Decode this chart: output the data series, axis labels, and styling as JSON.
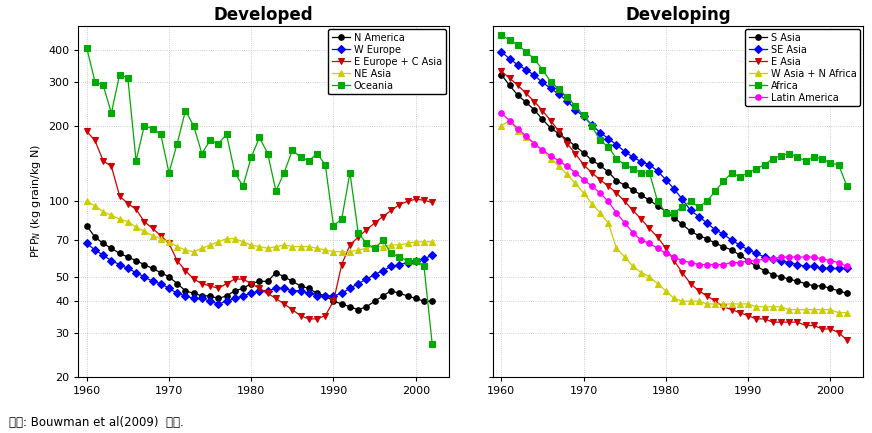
{
  "developed": {
    "title": "Developed",
    "series": {
      "N America": {
        "color": "#000000",
        "marker": "o",
        "markerface": "#000000",
        "data": {
          "1960": 80,
          "1961": 72,
          "1962": 68,
          "1963": 65,
          "1964": 62,
          "1965": 60,
          "1966": 58,
          "1967": 56,
          "1968": 54,
          "1969": 52,
          "1970": 50,
          "1971": 47,
          "1972": 44,
          "1973": 43,
          "1974": 42,
          "1975": 42,
          "1976": 41,
          "1977": 42,
          "1978": 44,
          "1979": 45,
          "1980": 47,
          "1981": 48,
          "1982": 48,
          "1983": 52,
          "1984": 50,
          "1985": 48,
          "1986": 46,
          "1987": 45,
          "1988": 43,
          "1989": 42,
          "1990": 40,
          "1991": 39,
          "1992": 38,
          "1993": 37,
          "1994": 38,
          "1995": 40,
          "1996": 42,
          "1997": 44,
          "1998": 43,
          "1999": 42,
          "2000": 41,
          "2001": 40,
          "2002": 40
        }
      },
      "W Europe": {
        "color": "#0000FF",
        "marker": "D",
        "markerface": "#0000FF",
        "data": {
          "1960": 68,
          "1961": 64,
          "1962": 61,
          "1963": 58,
          "1964": 56,
          "1965": 54,
          "1966": 52,
          "1967": 50,
          "1968": 48,
          "1969": 47,
          "1970": 45,
          "1971": 43,
          "1972": 42,
          "1973": 41,
          "1974": 41,
          "1975": 40,
          "1976": 39,
          "1977": 40,
          "1978": 41,
          "1979": 42,
          "1980": 43,
          "1981": 44,
          "1982": 44,
          "1983": 45,
          "1984": 45,
          "1985": 44,
          "1986": 44,
          "1987": 43,
          "1988": 42,
          "1989": 42,
          "1990": 42,
          "1991": 43,
          "1992": 45,
          "1993": 47,
          "1994": 49,
          "1995": 51,
          "1996": 53,
          "1997": 55,
          "1998": 56,
          "1999": 57,
          "2000": 58,
          "2001": 59,
          "2002": 61
        }
      },
      "E Europe + C Asia": {
        "color": "#CC0000",
        "marker": "v",
        "markerface": "#CC0000",
        "data": {
          "1960": 190,
          "1961": 175,
          "1962": 145,
          "1963": 138,
          "1964": 105,
          "1965": 98,
          "1966": 93,
          "1967": 83,
          "1968": 78,
          "1969": 73,
          "1970": 68,
          "1971": 58,
          "1972": 53,
          "1973": 49,
          "1974": 47,
          "1975": 46,
          "1976": 45,
          "1977": 47,
          "1978": 49,
          "1979": 49,
          "1980": 47,
          "1981": 45,
          "1982": 43,
          "1983": 41,
          "1984": 39,
          "1985": 37,
          "1986": 35,
          "1987": 34,
          "1988": 34,
          "1989": 35,
          "1990": 40,
          "1991": 56,
          "1992": 67,
          "1993": 72,
          "1994": 77,
          "1995": 82,
          "1996": 87,
          "1997": 92,
          "1998": 97,
          "1999": 100,
          "2000": 102,
          "2001": 101,
          "2002": 99
        }
      },
      "NE Asia": {
        "color": "#CCCC00",
        "marker": "^",
        "markerface": "#CCCC00",
        "data": {
          "1960": 100,
          "1961": 96,
          "1962": 91,
          "1963": 88,
          "1964": 85,
          "1965": 83,
          "1966": 79,
          "1967": 76,
          "1968": 73,
          "1969": 71,
          "1970": 69,
          "1971": 66,
          "1972": 64,
          "1973": 63,
          "1974": 65,
          "1975": 67,
          "1976": 69,
          "1977": 71,
          "1978": 71,
          "1979": 69,
          "1980": 67,
          "1981": 66,
          "1982": 65,
          "1983": 66,
          "1984": 67,
          "1985": 66,
          "1986": 66,
          "1987": 66,
          "1988": 65,
          "1989": 64,
          "1990": 63,
          "1991": 63,
          "1992": 63,
          "1993": 64,
          "1994": 65,
          "1995": 66,
          "1996": 66,
          "1997": 67,
          "1998": 67,
          "1999": 68,
          "2000": 69,
          "2001": 69,
          "2002": 69
        }
      },
      "Oceania": {
        "color": "#00AA00",
        "marker": "s",
        "markerface": "#00AA00",
        "data": {
          "1960": 410,
          "1961": 300,
          "1962": 290,
          "1963": 225,
          "1964": 320,
          "1965": 310,
          "1966": 145,
          "1967": 200,
          "1968": 195,
          "1969": 185,
          "1970": 130,
          "1971": 170,
          "1972": 230,
          "1973": 200,
          "1974": 155,
          "1975": 175,
          "1976": 170,
          "1977": 185,
          "1978": 130,
          "1979": 115,
          "1980": 150,
          "1981": 180,
          "1982": 155,
          "1983": 110,
          "1984": 130,
          "1985": 160,
          "1986": 150,
          "1987": 145,
          "1988": 155,
          "1989": 140,
          "1990": 80,
          "1991": 85,
          "1992": 130,
          "1993": 75,
          "1994": 68,
          "1995": 65,
          "1996": 70,
          "1997": 62,
          "1998": 60,
          "1999": 58,
          "2000": 58,
          "2001": 55,
          "2002": 27
        }
      }
    }
  },
  "developing": {
    "title": "Developing",
    "series": {
      "S Asia": {
        "color": "#000000",
        "marker": "o",
        "markerface": "#000000",
        "data": {
          "1960": 320,
          "1961": 290,
          "1962": 265,
          "1963": 248,
          "1964": 232,
          "1965": 212,
          "1966": 196,
          "1967": 186,
          "1968": 176,
          "1969": 166,
          "1970": 156,
          "1971": 146,
          "1972": 139,
          "1973": 131,
          "1974": 121,
          "1975": 116,
          "1976": 111,
          "1977": 106,
          "1978": 101,
          "1979": 96,
          "1980": 91,
          "1981": 86,
          "1982": 81,
          "1983": 76,
          "1984": 73,
          "1985": 71,
          "1986": 68,
          "1987": 66,
          "1988": 64,
          "1989": 61,
          "1990": 58,
          "1991": 55,
          "1992": 53,
          "1993": 51,
          "1994": 50,
          "1995": 49,
          "1996": 48,
          "1997": 47,
          "1998": 46,
          "1999": 46,
          "2000": 45,
          "2001": 44,
          "2002": 43
        }
      },
      "SE Asia": {
        "color": "#0000FF",
        "marker": "D",
        "markerface": "#0000FF",
        "data": {
          "1960": 395,
          "1961": 370,
          "1962": 350,
          "1963": 335,
          "1964": 318,
          "1965": 298,
          "1966": 282,
          "1967": 267,
          "1968": 252,
          "1969": 232,
          "1970": 218,
          "1971": 202,
          "1972": 188,
          "1973": 178,
          "1974": 168,
          "1975": 158,
          "1976": 150,
          "1977": 144,
          "1978": 140,
          "1979": 132,
          "1980": 122,
          "1981": 112,
          "1982": 102,
          "1983": 92,
          "1984": 87,
          "1985": 82,
          "1986": 77,
          "1987": 74,
          "1988": 70,
          "1989": 67,
          "1990": 64,
          "1991": 62,
          "1992": 60,
          "1993": 59,
          "1994": 58,
          "1995": 57,
          "1996": 56,
          "1997": 55,
          "1998": 55,
          "1999": 54,
          "2000": 54,
          "2001": 54,
          "2002": 54
        }
      },
      "E Asia": {
        "color": "#CC0000",
        "marker": "v",
        "markerface": "#CC0000",
        "data": {
          "1960": 330,
          "1961": 310,
          "1962": 290,
          "1963": 270,
          "1964": 250,
          "1965": 230,
          "1966": 210,
          "1967": 190,
          "1968": 170,
          "1969": 155,
          "1970": 140,
          "1971": 130,
          "1972": 122,
          "1973": 115,
          "1974": 108,
          "1975": 100,
          "1976": 92,
          "1977": 85,
          "1978": 78,
          "1979": 72,
          "1980": 65,
          "1981": 58,
          "1982": 52,
          "1983": 47,
          "1984": 44,
          "1985": 42,
          "1986": 40,
          "1987": 38,
          "1988": 37,
          "1989": 36,
          "1990": 35,
          "1991": 34,
          "1992": 34,
          "1993": 33,
          "1994": 33,
          "1995": 33,
          "1996": 33,
          "1997": 32,
          "1998": 32,
          "1999": 31,
          "2000": 31,
          "2001": 30,
          "2002": 28
        }
      },
      "W Asia + N Africa": {
        "color": "#CCCC00",
        "marker": "^",
        "markerface": "#CCCC00",
        "data": {
          "1960": 200,
          "1961": 210,
          "1962": 190,
          "1963": 180,
          "1964": 170,
          "1965": 160,
          "1966": 148,
          "1967": 138,
          "1968": 128,
          "1969": 118,
          "1970": 108,
          "1971": 98,
          "1972": 90,
          "1973": 82,
          "1974": 65,
          "1975": 60,
          "1976": 55,
          "1977": 52,
          "1978": 50,
          "1979": 47,
          "1980": 44,
          "1981": 41,
          "1982": 40,
          "1983": 40,
          "1984": 40,
          "1985": 39,
          "1986": 39,
          "1987": 39,
          "1988": 39,
          "1989": 39,
          "1990": 39,
          "1991": 38,
          "1992": 38,
          "1993": 38,
          "1994": 38,
          "1995": 37,
          "1996": 37,
          "1997": 37,
          "1998": 37,
          "1999": 37,
          "2000": 37,
          "2001": 36,
          "2002": 36
        }
      },
      "Africa": {
        "color": "#00AA00",
        "marker": "s",
        "markerface": "#00AA00",
        "data": {
          "1960": 460,
          "1961": 440,
          "1962": 420,
          "1963": 395,
          "1964": 370,
          "1965": 335,
          "1966": 300,
          "1967": 280,
          "1968": 260,
          "1969": 240,
          "1970": 220,
          "1971": 200,
          "1972": 175,
          "1973": 165,
          "1974": 148,
          "1975": 140,
          "1976": 135,
          "1977": 130,
          "1978": 130,
          "1979": 100,
          "1980": 90,
          "1981": 90,
          "1982": 95,
          "1983": 100,
          "1984": 95,
          "1985": 100,
          "1986": 110,
          "1987": 120,
          "1988": 130,
          "1989": 125,
          "1990": 130,
          "1991": 135,
          "1992": 140,
          "1993": 148,
          "1994": 152,
          "1995": 155,
          "1996": 150,
          "1997": 145,
          "1998": 150,
          "1999": 148,
          "2000": 142,
          "2001": 140,
          "2002": 115
        }
      },
      "Latin America": {
        "color": "#FF00FF",
        "marker": "o",
        "markerface": "#FF00FF",
        "data": {
          "1960": 225,
          "1961": 210,
          "1962": 195,
          "1963": 182,
          "1964": 170,
          "1965": 160,
          "1966": 152,
          "1967": 145,
          "1968": 138,
          "1969": 130,
          "1970": 122,
          "1971": 115,
          "1972": 108,
          "1973": 100,
          "1974": 90,
          "1975": 82,
          "1976": 75,
          "1977": 70,
          "1978": 68,
          "1979": 65,
          "1980": 62,
          "1981": 60,
          "1982": 58,
          "1983": 57,
          "1984": 56,
          "1985": 56,
          "1986": 56,
          "1987": 56,
          "1988": 57,
          "1989": 57,
          "1990": 58,
          "1991": 58,
          "1992": 59,
          "1993": 59,
          "1994": 60,
          "1995": 60,
          "1996": 60,
          "1997": 60,
          "1998": 60,
          "1999": 59,
          "2000": 58,
          "2001": 57,
          "2002": 55
        }
      }
    }
  },
  "ylabel": "PFP_N (kg grain/kg N)",
  "footnote": "자료: Bouwman et al(2009)  인용.",
  "ylim": [
    20,
    500
  ],
  "yticks": [
    20,
    30,
    40,
    50,
    70,
    100,
    200,
    300,
    400
  ],
  "xlim": [
    1959,
    2004
  ],
  "xticks": [
    1960,
    1970,
    1980,
    1990,
    2000
  ]
}
